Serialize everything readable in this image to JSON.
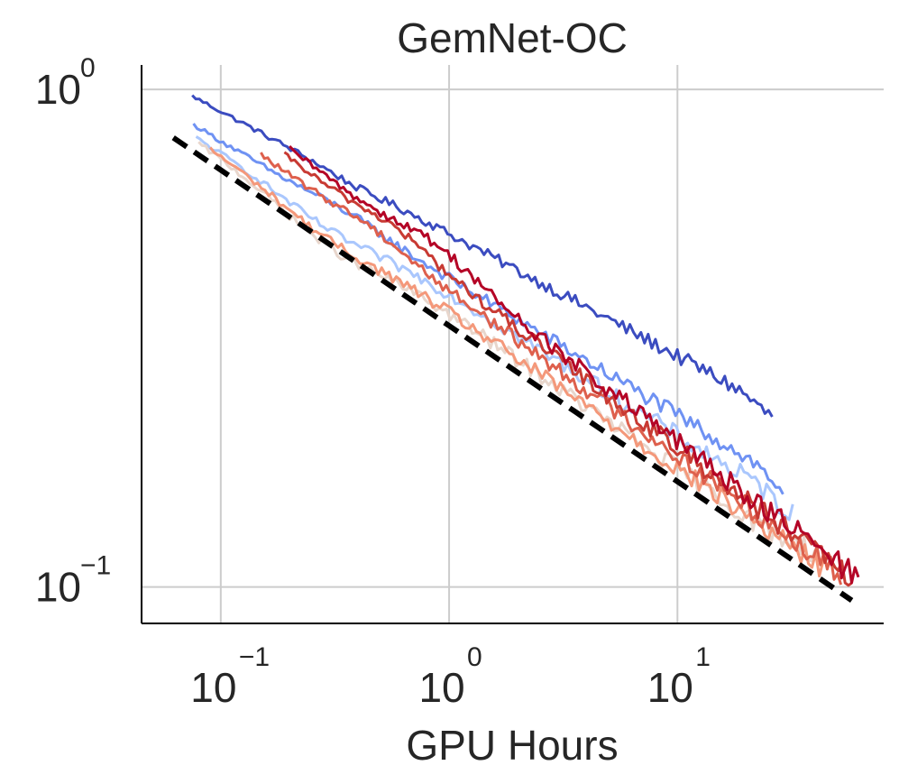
{
  "chart_data": {
    "type": "line",
    "title": "GemNet-OC",
    "xlabel": "GPU Hours",
    "ylabel": "",
    "x_scale": "log",
    "y_scale": "log",
    "xlim": [
      0.045,
      80
    ],
    "ylim": [
      0.0845,
      1.12
    ],
    "x_ticks": [
      {
        "value": 0.1,
        "base": "10",
        "exp": "−1"
      },
      {
        "value": 1,
        "base": "10",
        "exp": "0"
      },
      {
        "value": 10,
        "base": "10",
        "exp": "1"
      }
    ],
    "y_ticks": [
      {
        "value": 0.1,
        "base": "10",
        "exp": "−1"
      },
      {
        "value": 1,
        "base": "10",
        "exp": "0"
      }
    ],
    "grid": true,
    "legend": "none",
    "series": [
      {
        "color": "#3b4cc0",
        "start_x": 0.075,
        "start_y": 0.97,
        "end_x": 26,
        "end_y": 0.23,
        "slope": -0.248,
        "bumps": [
          [
            0.4,
            -0.006,
            0.15
          ],
          [
            26,
            -0.02,
            0.1
          ]
        ],
        "noise": 0.035,
        "points": 160,
        "dashed": false
      },
      {
        "color": "#6f92f3",
        "start_x": 0.076,
        "start_y": 0.85,
        "end_x": 29,
        "end_y": 0.165,
        "slope": -0.276,
        "bumps": [
          [
            0.35,
            0.01,
            0.2
          ],
          [
            29,
            -0.02,
            0.1
          ]
        ],
        "noise": 0.04,
        "points": 160,
        "dashed": false
      },
      {
        "color": "#aac7fd",
        "start_x": 0.078,
        "start_y": 0.8,
        "end_x": 32,
        "end_y": 0.145,
        "slope": -0.285,
        "bumps": [
          [
            0.3,
            -0.02,
            0.3
          ],
          [
            32,
            -0.015,
            0.1
          ]
        ],
        "noise": 0.045,
        "points": 160,
        "dashed": false
      },
      {
        "color": "#e8d6cc",
        "start_x": 0.08,
        "start_y": 0.78,
        "end_x": 40,
        "end_y": 0.112,
        "slope": -0.31,
        "bumps": [
          [
            0.3,
            -0.03,
            0.3
          ],
          [
            38,
            0.02,
            0.1
          ]
        ],
        "noise": 0.05,
        "points": 170,
        "dashed": false
      },
      {
        "color": "#f4987a",
        "start_x": 0.09,
        "start_y": 0.76,
        "end_x": 45,
        "end_y": 0.108,
        "slope": -0.315,
        "bumps": [
          [
            0.3,
            -0.02,
            0.3
          ]
        ],
        "noise": 0.05,
        "points": 170,
        "dashed": false
      },
      {
        "color": "#de604d",
        "start_x": 0.15,
        "start_y": 0.74,
        "end_x": 52,
        "end_y": 0.106,
        "slope": -0.33,
        "bumps": [
          [
            0.45,
            0.015,
            0.2
          ]
        ],
        "noise": 0.05,
        "points": 170,
        "dashed": false
      },
      {
        "color": "#c83a33",
        "start_x": 0.19,
        "start_y": 0.74,
        "end_x": 58,
        "end_y": 0.104,
        "slope": -0.345,
        "bumps": [
          [
            0.6,
            0.02,
            0.2
          ]
        ],
        "noise": 0.05,
        "points": 170,
        "dashed": false
      },
      {
        "color": "#b40426",
        "start_x": 0.2,
        "start_y": 0.76,
        "end_x": 62,
        "end_y": 0.104,
        "slope": -0.35,
        "bumps": [
          [
            0.9,
            0.03,
            0.25
          ]
        ],
        "noise": 0.055,
        "points": 170,
        "dashed": false
      },
      {
        "color": "#000000",
        "start_x": 0.062,
        "start_y": 0.8,
        "end_x": 58,
        "end_y": 0.094,
        "slope": -0.313,
        "bumps": [],
        "noise": 0.0,
        "points": 60,
        "dashed": true
      }
    ]
  }
}
